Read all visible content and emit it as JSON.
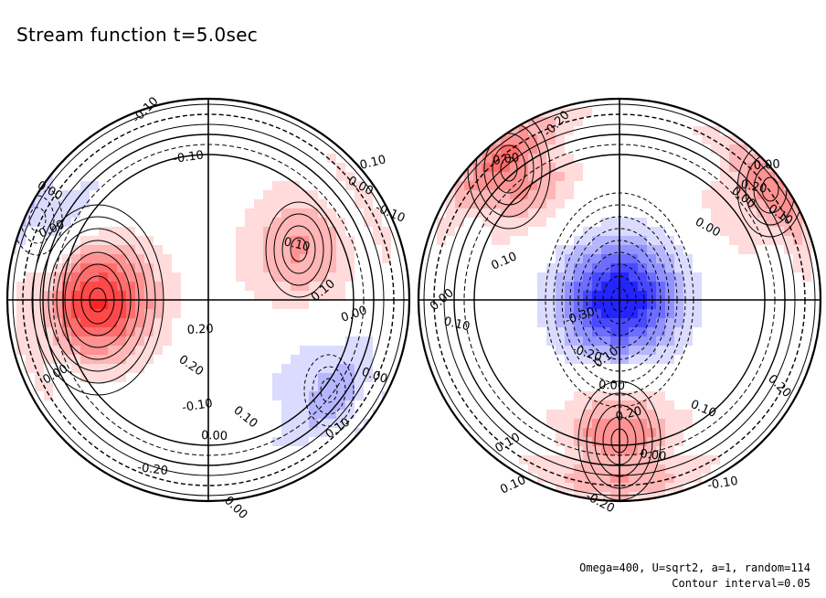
{
  "title": "Stream function t=5.0sec",
  "footer": {
    "params": "Omega=400, U=sqrt2, a=1, random=114",
    "contour_interval": "Contour interval=0.05"
  },
  "chart_data": [
    {
      "type": "heatmap",
      "panel": "left hemisphere",
      "colormap": {
        "negative": "#0000ff",
        "zero": "#ffffff",
        "positive": "#ff0000"
      },
      "contour_interval": 0.05,
      "contour_labels": [
        "-0.10",
        "-0.10",
        "0.00",
        "0.00",
        "0.10",
        "0.10",
        "0.20",
        "0.20",
        "0.00",
        "0.00",
        "0.10",
        "0.00",
        "0.10",
        "0.10",
        "-0.10",
        "0.00",
        "-0.20",
        "0.00",
        "-0.10",
        "0.00"
      ],
      "features": [
        {
          "kind": "max",
          "value": 0.4,
          "lon": -0.55,
          "lat": 0.0
        },
        {
          "kind": "max",
          "value": 0.2,
          "lon": 0.45,
          "lat": 0.25
        },
        {
          "kind": "min",
          "value": -0.15,
          "lon": 0.6,
          "lat": -0.45
        },
        {
          "kind": "min",
          "value": -0.15,
          "lon": -0.85,
          "lat": 0.4
        }
      ]
    },
    {
      "type": "heatmap",
      "panel": "right hemisphere",
      "colormap": {
        "negative": "#0000ff",
        "zero": "#ffffff",
        "positive": "#ff0000"
      },
      "contour_interval": 0.05,
      "contour_labels": [
        "-0.20",
        "0.00",
        "0.00",
        "0.10",
        "0.10",
        "0.00",
        "0.00",
        "0.10",
        "-0.30",
        "-0.20",
        "-0.10",
        "0.00",
        "0.00",
        "0.20",
        "0.10",
        "0.10",
        "0.00",
        "0.20",
        "-0.10",
        "-0.20",
        "0.10",
        "0.20"
      ],
      "features": [
        {
          "kind": "min",
          "value": -0.45,
          "lon": 0.0,
          "lat": 0.0
        },
        {
          "kind": "max",
          "value": 0.25,
          "lon": -0.55,
          "lat": 0.65
        },
        {
          "kind": "max",
          "value": 0.25,
          "lon": 0.0,
          "lat": -0.7
        },
        {
          "kind": "max",
          "value": 0.2,
          "lon": 0.75,
          "lat": 0.55
        }
      ]
    }
  ]
}
